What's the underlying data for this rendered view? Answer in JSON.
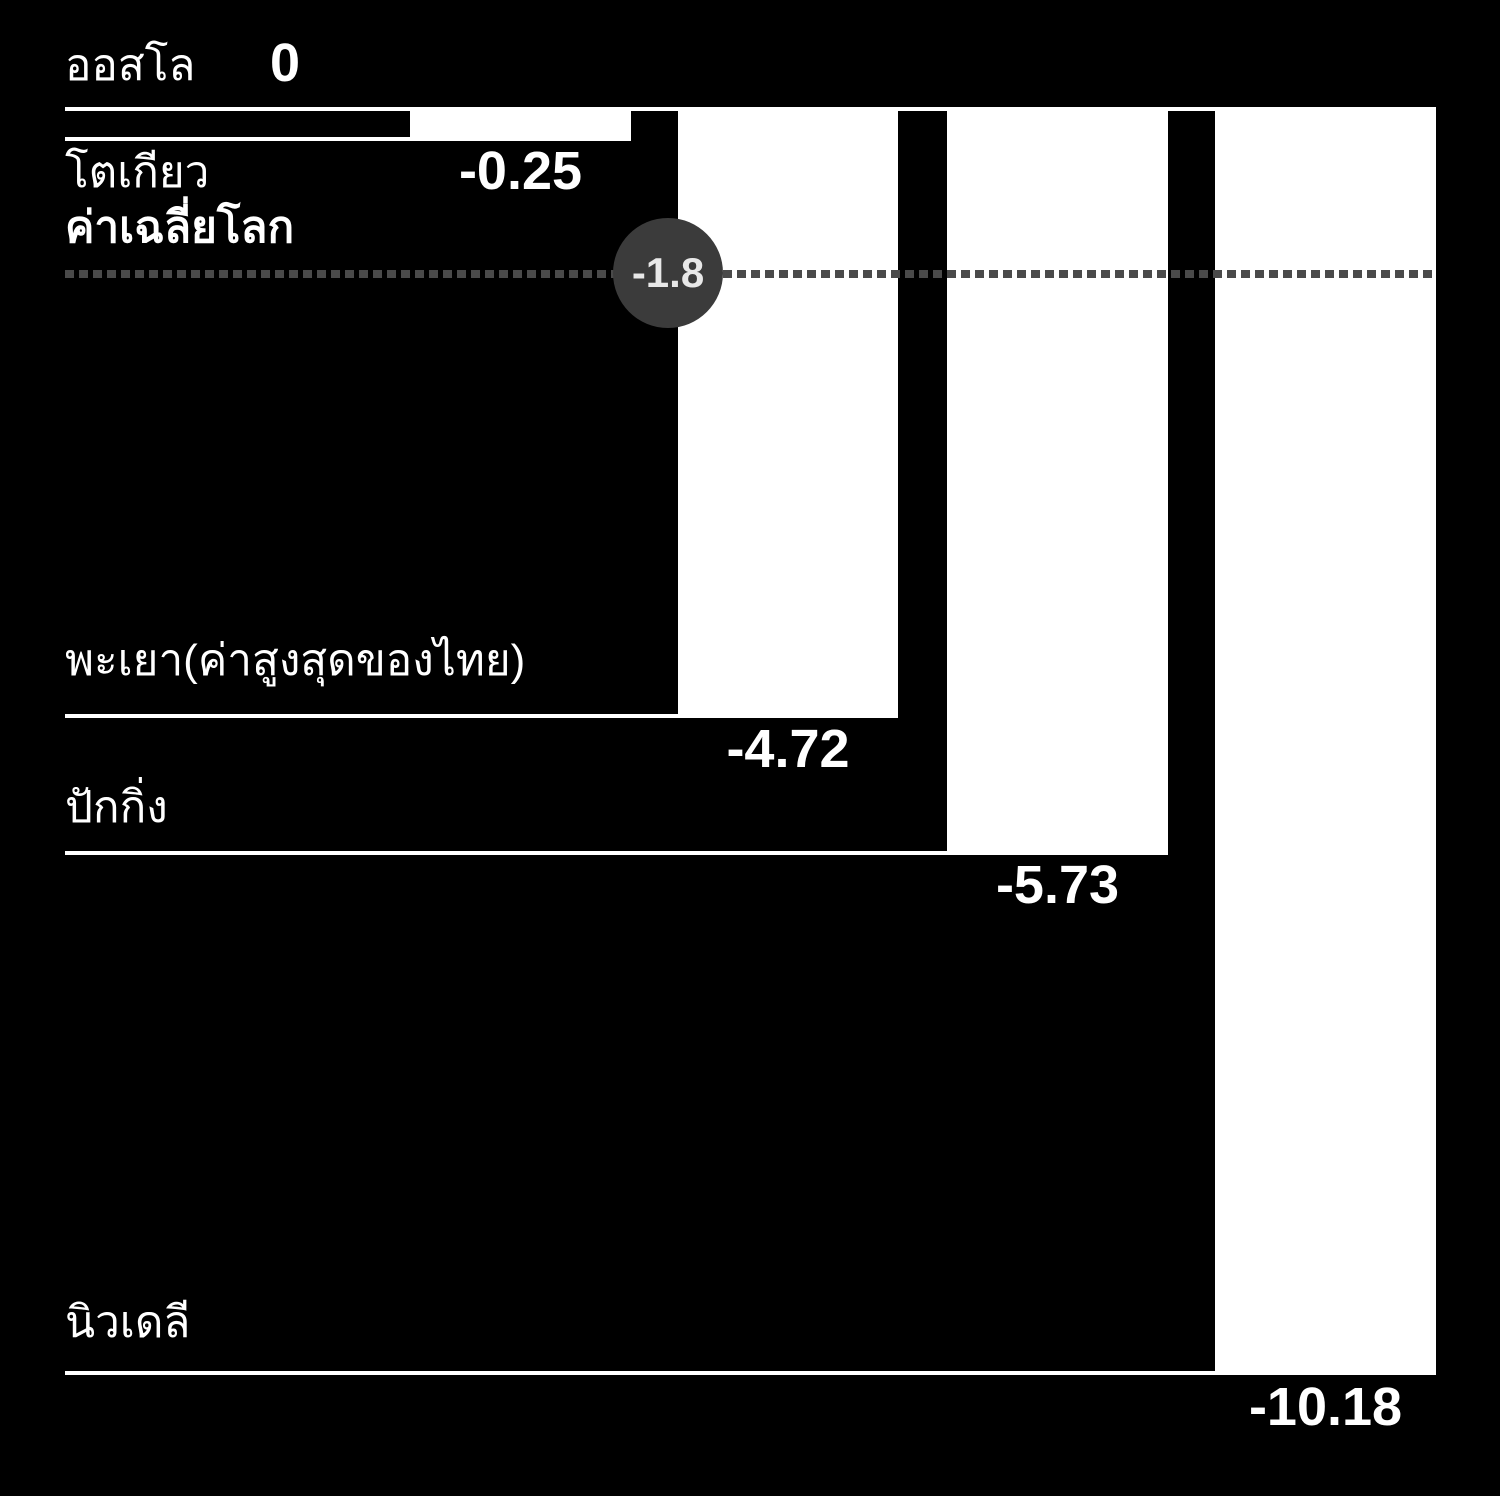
{
  "chart_data": {
    "type": "bar",
    "title": "",
    "categories": [
      "ออสโล",
      "โตเกียว",
      "พะเยา(ค่าสูงสุดของไทย)",
      "ปักกิ่ง",
      "นิวเดลี"
    ],
    "values": [
      0,
      -0.25,
      -4.72,
      -5.73,
      -10.18
    ],
    "value_labels": [
      "0",
      "-0.25",
      "-4.72",
      "-5.73",
      "-10.18"
    ],
    "reference_line": {
      "label": "ค่าเฉลี่ยโลก",
      "value": -1.8,
      "value_label": "-1.8",
      "style": "dotted"
    },
    "ylim": [
      -10.5,
      0
    ],
    "grid": false,
    "legend": "none",
    "layout": {
      "orientation": "bars-hang-down-from-top-baseline",
      "labels_position": "left-above-underline",
      "values_position": "centered-below-bar"
    },
    "colors": {
      "background": "#000000",
      "bar": "#ffffff",
      "text": "#ffffff",
      "reference_dots": "#4a4a4a",
      "badge_background": "#3b3b3b",
      "badge_text": "#e8e8e8"
    }
  }
}
